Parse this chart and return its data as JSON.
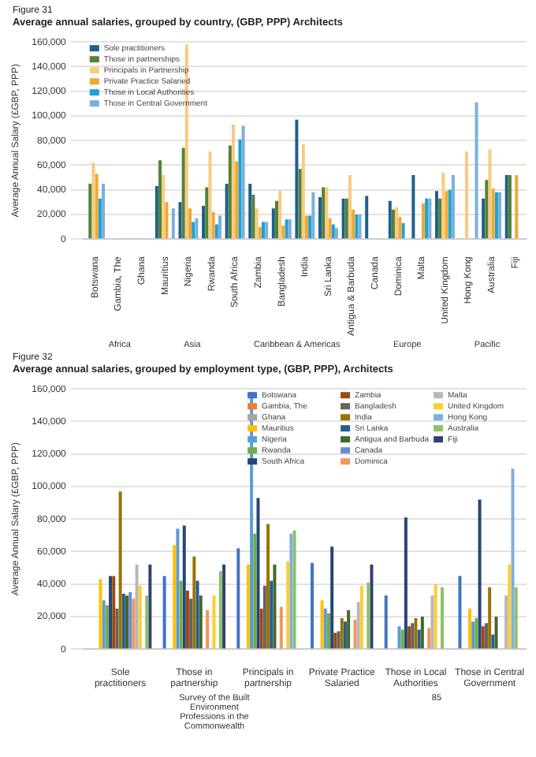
{
  "chart_data": [
    {
      "type": "bar",
      "title": "Figure 31",
      "subtitle": "Average annual salaries, grouped by country, (GBP, PPP) Architects",
      "ylabel": "Average Annual Salary (£GBP, PPP)",
      "categories": [
        "Botswana",
        "Gambia, The",
        "Ghana",
        "Mauritius",
        "Nigeria",
        "Rwanda",
        "South Africa",
        "Zambia",
        "Bangladesh",
        "India",
        "Sri Lanka",
        "Antigua & Barbuda",
        "Canada",
        "Dominica",
        "Malta",
        "United Kingdom",
        "Hong Kong",
        "Australia",
        "Fiji"
      ],
      "series": [
        {
          "name": "Sole practitioners",
          "color": "#1f5f8b",
          "values": [
            null,
            null,
            null,
            43000,
            30000,
            27000,
            45000,
            45000,
            25000,
            97000,
            34000,
            33000,
            35000,
            31000,
            52000,
            39000,
            null,
            33000,
            52000
          ]
        },
        {
          "name": "Those in partnerships",
          "color": "#548235",
          "values": [
            45000,
            null,
            null,
            64000,
            74000,
            42000,
            76000,
            36000,
            31000,
            57000,
            42000,
            33000,
            null,
            24000,
            null,
            33000,
            null,
            48000,
            52000
          ]
        },
        {
          "name": "Principals in Partnership",
          "color": "#f8cb7f",
          "values": [
            62000,
            null,
            null,
            52000,
            158000,
            71000,
            93000,
            25000,
            39000,
            77000,
            42000,
            52000,
            null,
            26000,
            null,
            54000,
            71000,
            73000,
            null
          ]
        },
        {
          "name": "Private Practice Salaried",
          "color": "#f0a830",
          "values": [
            53000,
            null,
            null,
            30000,
            25000,
            22000,
            63000,
            10000,
            11000,
            19000,
            17000,
            24000,
            null,
            18000,
            29000,
            39000,
            null,
            41000,
            52000
          ]
        },
        {
          "name": "Those in Local Authorities",
          "color": "#1ba1d6",
          "values": [
            33000,
            null,
            null,
            null,
            14000,
            12000,
            81000,
            14000,
            16000,
            19000,
            12000,
            20000,
            null,
            13000,
            33000,
            40000,
            null,
            38000,
            null
          ]
        },
        {
          "name": "Those in Central Government",
          "color": "#7ab0dc",
          "values": [
            45000,
            null,
            null,
            25000,
            17000,
            19000,
            92000,
            14000,
            16000,
            38000,
            9000,
            20000,
            null,
            null,
            33000,
            52000,
            111000,
            38000,
            null
          ]
        }
      ],
      "ylim": [
        0,
        160000
      ],
      "yticks": [
        0,
        {
          "value": 20000,
          "label": "20,000"
        },
        {
          "value": 40000,
          "label": "40,000"
        },
        {
          "value": 60000,
          "label": "60,000"
        },
        {
          "value": 80000,
          "label": "80,000"
        },
        {
          "value": 100000,
          "label": "100,000"
        },
        {
          "value": 120000,
          "label": "120,000"
        },
        {
          "value": 140000,
          "label": "140,000"
        },
        {
          "value": 160000,
          "label": "160,000"
        }
      ],
      "grid": "y",
      "legend": "top left",
      "annotations": [
        "Africa",
        "Asia",
        "Caribbean & Americas",
        "Europe",
        "Pacific"
      ]
    },
    {
      "type": "bar",
      "title": "Figure 32",
      "subtitle": "Average annual salaries, grouped by employment type, (GBP, PPP), Architects",
      "ylabel": "Average Annual Salary (£GBP, PPP)",
      "categories": [
        "Sole practitioners",
        "Those in partnership",
        "Principals in partnership",
        "Private Practice Salaried",
        "Those in Local Authorities",
        "Those in Central Government"
      ],
      "series": [
        {
          "name": "Botswana",
          "color": "#4472c4",
          "values": [
            null,
            45000,
            62000,
            53000,
            33000,
            45000
          ]
        },
        {
          "name": "Gambia, The",
          "color": "#ed7d31",
          "values": [
            null,
            null,
            null,
            null,
            null,
            null
          ]
        },
        {
          "name": "Ghana",
          "color": "#a5a5a5",
          "values": [
            null,
            null,
            null,
            null,
            null,
            null
          ]
        },
        {
          "name": "Mauritius",
          "color": "#ffc000",
          "values": [
            43000,
            64000,
            52000,
            30000,
            null,
            25000
          ]
        },
        {
          "name": "Nigeria",
          "color": "#5b9bd5",
          "values": [
            30000,
            74000,
            158000,
            25000,
            14000,
            17000
          ]
        },
        {
          "name": "Rwanda",
          "color": "#70ad47",
          "values": [
            27000,
            42000,
            71000,
            22000,
            12000,
            19000
          ]
        },
        {
          "name": "South Africa",
          "color": "#264478",
          "values": [
            45000,
            76000,
            93000,
            63000,
            81000,
            92000
          ]
        },
        {
          "name": "Zambia",
          "color": "#9e480e",
          "values": [
            45000,
            36000,
            25000,
            10000,
            14000,
            14000
          ]
        },
        {
          "name": "Bangladesh",
          "color": "#636363",
          "values": [
            25000,
            31000,
            39000,
            11000,
            16000,
            16000
          ]
        },
        {
          "name": "India",
          "color": "#997300",
          "values": [
            97000,
            57000,
            77000,
            19000,
            19000,
            38000
          ]
        },
        {
          "name": "Sri Lanka",
          "color": "#255e91",
          "values": [
            34000,
            42000,
            42000,
            17000,
            12000,
            9000
          ]
        },
        {
          "name": "Antigua and Barbuda",
          "color": "#43682b",
          "values": [
            33000,
            33000,
            52000,
            24000,
            20000,
            20000
          ]
        },
        {
          "name": "Canada",
          "color": "#698ed0",
          "values": [
            35000,
            null,
            null,
            null,
            null,
            null
          ]
        },
        {
          "name": "Dominica",
          "color": "#f1975a",
          "values": [
            31000,
            24000,
            26000,
            18000,
            13000,
            null
          ]
        },
        {
          "name": "Malta",
          "color": "#b7b7b7",
          "values": [
            52000,
            null,
            null,
            29000,
            33000,
            33000
          ]
        },
        {
          "name": "United Kingdom",
          "color": "#ffcd33",
          "values": [
            39000,
            33000,
            54000,
            39000,
            40000,
            52000
          ]
        },
        {
          "name": "Hong Kong",
          "color": "#7cafdd",
          "values": [
            null,
            null,
            71000,
            null,
            null,
            111000
          ]
        },
        {
          "name": "Australia",
          "color": "#8cc168",
          "values": [
            33000,
            48000,
            73000,
            41000,
            38000,
            38000
          ]
        },
        {
          "name": "Fiji",
          "color": "#333f75",
          "values": [
            52000,
            52000,
            null,
            52000,
            null,
            null
          ]
        }
      ],
      "ylim": [
        0,
        160000
      ],
      "yticks": [
        0,
        {
          "value": 20000,
          "label": "20,000"
        },
        {
          "value": 40000,
          "label": "40,000"
        },
        {
          "value": 60000,
          "label": "60,000"
        },
        {
          "value": 80000,
          "label": "80,000"
        },
        {
          "value": 100000,
          "label": "100,000"
        },
        {
          "value": 120000,
          "label": "120,000"
        },
        {
          "value": 140000,
          "label": "140,000"
        },
        {
          "value": 160000,
          "label": "160,000"
        }
      ],
      "grid": "y",
      "legend": "top right",
      "annotations": [
        "Survey of the Built Environment Professions in the Commonwealth",
        "85"
      ]
    }
  ]
}
